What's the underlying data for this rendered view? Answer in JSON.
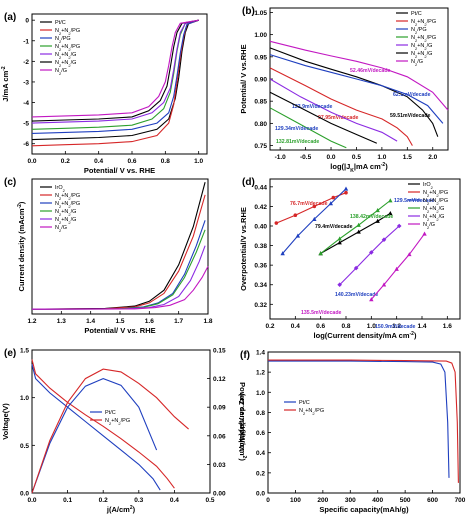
{
  "chart_data": [
    {
      "panel_label": "(a)",
      "type": "line",
      "xlabel": "Potential/ V vs. RHE",
      "ylabel": "J/mA cm",
      "ylabel_sup": "-2",
      "xlim": [
        0.0,
        1.05
      ],
      "ylim": [
        -6.5,
        0.3
      ],
      "xticks": [
        "0.0",
        "0.2",
        "0.4",
        "0.6",
        "0.8",
        "1.0"
      ],
      "yticks": [
        "-6",
        "-5",
        "-4",
        "-3",
        "-2",
        "-1",
        "0"
      ],
      "legend_position": "top-left",
      "series": [
        {
          "name": "Pt/C",
          "color": "#000000",
          "x": [
            0.0,
            0.2,
            0.4,
            0.6,
            0.75,
            0.82,
            0.86,
            0.88,
            0.9,
            0.92,
            0.94,
            1.0
          ],
          "y": [
            -5.8,
            -5.75,
            -5.7,
            -5.6,
            -5.3,
            -4.8,
            -3.8,
            -2.8,
            -1.5,
            -0.6,
            -0.15,
            0.0
          ]
        },
        {
          "name": "N2+N2/PG",
          "color": "#d62728",
          "x": [
            0.0,
            0.2,
            0.4,
            0.6,
            0.75,
            0.82,
            0.85,
            0.87,
            0.89,
            0.91,
            0.93,
            1.0
          ],
          "y": [
            -6.1,
            -6.05,
            -6.0,
            -5.9,
            -5.6,
            -5.0,
            -4.1,
            -3.0,
            -1.8,
            -0.8,
            -0.2,
            0.0
          ]
        },
        {
          "name": "N2/PG",
          "color": "#1f3fbf",
          "x": [
            0.0,
            0.2,
            0.4,
            0.6,
            0.75,
            0.82,
            0.85,
            0.87,
            0.89,
            0.91,
            0.93,
            1.0
          ],
          "y": [
            -5.5,
            -5.45,
            -5.4,
            -5.3,
            -5.0,
            -4.5,
            -3.7,
            -2.7,
            -1.6,
            -0.7,
            -0.2,
            0.0
          ]
        },
        {
          "name": "N2+N2/PG",
          "color": "#2ca02c",
          "x": [
            0.0,
            0.2,
            0.4,
            0.6,
            0.72,
            0.79,
            0.83,
            0.85,
            0.87,
            0.89,
            0.92,
            1.0
          ],
          "y": [
            -5.3,
            -5.25,
            -5.2,
            -5.1,
            -4.8,
            -4.3,
            -3.5,
            -2.6,
            -1.5,
            -0.7,
            -0.15,
            0.0
          ]
        },
        {
          "name": "N2+N2/G",
          "color": "#8b2be2",
          "x": [
            0.0,
            0.2,
            0.4,
            0.6,
            0.72,
            0.79,
            0.83,
            0.85,
            0.87,
            0.89,
            0.92,
            1.0
          ],
          "y": [
            -5.0,
            -4.95,
            -4.9,
            -4.8,
            -4.5,
            -4.0,
            -3.3,
            -2.4,
            -1.4,
            -0.6,
            -0.15,
            0.0
          ]
        },
        {
          "name": "N2+N2/G",
          "color": "#000000",
          "x": [
            0.0,
            0.2,
            0.4,
            0.6,
            0.7,
            0.77,
            0.81,
            0.83,
            0.85,
            0.87,
            0.9,
            1.0
          ],
          "y": [
            -4.9,
            -4.85,
            -4.8,
            -4.7,
            -4.4,
            -3.9,
            -3.2,
            -2.3,
            -1.3,
            -0.6,
            -0.15,
            0.0
          ]
        },
        {
          "name": "N2/G",
          "color": "#c218c2",
          "x": [
            0.0,
            0.2,
            0.4,
            0.6,
            0.7,
            0.76,
            0.8,
            0.82,
            0.84,
            0.86,
            0.89,
            1.0
          ],
          "y": [
            -4.7,
            -4.65,
            -4.6,
            -4.5,
            -4.2,
            -3.7,
            -3.0,
            -2.2,
            -1.3,
            -0.6,
            -0.15,
            0.0
          ]
        }
      ]
    },
    {
      "panel_label": "(b)",
      "type": "line",
      "xlabel": "log(|J",
      "xlabel_sub": "K",
      "xlabel_tail": "|mA cm",
      "xlabel_sup": "-2",
      "xlabel_end": ")",
      "ylabel": "Potential/ V vs.RHE",
      "xlim": [
        -1.2,
        2.3
      ],
      "ylim": [
        0.74,
        1.06
      ],
      "xticks": [
        "-1.0",
        "-0.5",
        "0.0",
        "0.5",
        "1.0",
        "1.5",
        "2.0"
      ],
      "yticks": [
        "0.75",
        "0.80",
        "0.85",
        "0.90",
        "0.95",
        "1.00",
        "1.05"
      ],
      "legend_position": "top-right",
      "series": [
        {
          "name": "Pt/C",
          "color": "#000000",
          "x": [
            -1.2,
            -0.5,
            0.0,
            0.5,
            1.0,
            1.5,
            1.8,
            2.0,
            2.1
          ],
          "y": [
            0.97,
            0.94,
            0.922,
            0.905,
            0.885,
            0.86,
            0.83,
            0.8,
            0.77
          ],
          "annotation": "59.51mV/decade",
          "annotation_color": "#000000"
        },
        {
          "name": "N2+N2/PG",
          "color": "#d62728",
          "x": [
            -1.2,
            -0.5,
            0.0,
            0.5,
            1.0,
            1.3,
            1.5,
            1.6
          ],
          "y": [
            0.925,
            0.885,
            0.855,
            0.83,
            0.81,
            0.79,
            0.77,
            0.75
          ],
          "annotation": "97.95mV/decade",
          "annotation_color": "#d62728"
        },
        {
          "name": "N2/PG",
          "color": "#1f3fbf",
          "x": [
            -1.2,
            -0.5,
            0.0,
            0.5,
            1.0,
            1.5,
            1.9,
            2.2
          ],
          "y": [
            0.955,
            0.93,
            0.915,
            0.9,
            0.885,
            0.865,
            0.84,
            0.8
          ],
          "annotation": "62.1mV/decade",
          "annotation_color": "#1f3fbf"
        },
        {
          "name": "N2+N2/PG",
          "color": "#2ca02c",
          "x": [
            -1.2,
            -0.8,
            -0.4,
            0.0,
            0.3
          ],
          "y": [
            0.835,
            0.81,
            0.785,
            0.76,
            0.745
          ],
          "annotation": "132.81mV/decade",
          "annotation_color": "#2ca02c"
        },
        {
          "name": "N2+N2/G",
          "color": "#8b2be2",
          "x": [
            -1.2,
            -0.6,
            0.0,
            0.5,
            1.0,
            1.3
          ],
          "y": [
            0.9,
            0.86,
            0.825,
            0.8,
            0.78,
            0.76
          ],
          "annotation": "123.9mV/decade",
          "annotation_color": "#1f3fbf"
        },
        {
          "name": "N2+N2/G",
          "color": "#000000",
          "x": [
            -1.2,
            -0.6,
            0.0,
            0.5,
            0.9
          ],
          "y": [
            0.87,
            0.835,
            0.8,
            0.775,
            0.755
          ],
          "annotation": "129.34mV/decade",
          "annotation_color": "#1f3fbf"
        },
        {
          "name": "N2/G",
          "color": "#c218c2",
          "x": [
            -1.2,
            -0.5,
            0.0,
            0.5,
            1.0,
            1.5,
            2.0,
            2.3
          ],
          "y": [
            0.985,
            0.965,
            0.952,
            0.94,
            0.925,
            0.905,
            0.87,
            0.83
          ],
          "annotation": "52.46mV/decade",
          "annotation_color": "#c218c2"
        }
      ]
    },
    {
      "panel_label": "(c)",
      "type": "line",
      "xlabel": "Potential/ V vs. RHE",
      "ylabel": "Current density (mAcm",
      "ylabel_sup": "-2",
      "ylabel_end": ")",
      "xlim": [
        1.2,
        1.8
      ],
      "ylim": [
        -3,
        82
      ],
      "xticks": [
        "1.2",
        "1.3",
        "1.4",
        "1.5",
        "1.6",
        "1.7",
        "1.8"
      ],
      "yticks": [],
      "legend_position": "top-left",
      "series": [
        {
          "name": "IrO2",
          "color": "#000000",
          "x": [
            1.2,
            1.45,
            1.55,
            1.6,
            1.65,
            1.7,
            1.75,
            1.79
          ],
          "y": [
            0,
            0.5,
            2,
            5,
            12,
            28,
            52,
            80
          ]
        },
        {
          "name": "N2+N2/PG",
          "color": "#d62728",
          "x": [
            1.2,
            1.45,
            1.55,
            1.6,
            1.65,
            1.7,
            1.75,
            1.79
          ],
          "y": [
            0,
            0.3,
            1.5,
            4,
            10,
            24,
            46,
            72
          ]
        },
        {
          "name": "N2+N2/PG",
          "color": "#1f3fbf",
          "x": [
            1.2,
            1.5,
            1.58,
            1.63,
            1.68,
            1.72,
            1.76,
            1.79
          ],
          "y": [
            0,
            0.3,
            1.5,
            4,
            10,
            22,
            40,
            56
          ]
        },
        {
          "name": "N2+N2/G",
          "color": "#2ca02c",
          "x": [
            1.2,
            1.5,
            1.58,
            1.63,
            1.68,
            1.72,
            1.76,
            1.79
          ],
          "y": [
            0,
            0.2,
            1.2,
            3.5,
            9,
            20,
            36,
            50
          ]
        },
        {
          "name": "N2+N2/G",
          "color": "#8b2be2",
          "x": [
            1.2,
            1.52,
            1.6,
            1.65,
            1.7,
            1.74,
            1.77,
            1.79
          ],
          "y": [
            0,
            0.2,
            1.0,
            3.0,
            8,
            18,
            30,
            40
          ]
        },
        {
          "name": "N2/G",
          "color": "#c218c2",
          "x": [
            1.2,
            1.55,
            1.62,
            1.67,
            1.72,
            1.75,
            1.78,
            1.8
          ],
          "y": [
            0,
            0.2,
            1.0,
            2.5,
            6,
            12,
            20,
            27
          ]
        }
      ]
    },
    {
      "panel_label": "(d)",
      "type": "scatter",
      "xlabel": "log(Current density/mA cm",
      "xlabel_sup": "-2",
      "xlabel_end": ")",
      "ylabel": "Overpotential/V vs.RHE",
      "xlim": [
        0.2,
        1.7
      ],
      "ylim": [
        0.305,
        0.448
      ],
      "xticks": [
        "0.2",
        "0.4",
        "0.6",
        "0.8",
        "1.0",
        "1.2",
        "1.4",
        "1.6"
      ],
      "yticks": [
        "0.32",
        "0.34",
        "0.36",
        "0.38",
        "0.40",
        "0.42",
        "0.44"
      ],
      "legend_position": "top-right",
      "series": [
        {
          "name": "IrO2",
          "color": "#000000",
          "marker": "triangle",
          "x": [
            0.6,
            0.75,
            0.9,
            1.05,
            1.15
          ],
          "y": [
            0.372,
            0.383,
            0.394,
            0.405,
            0.413
          ],
          "annotation": "79.4mV/decade",
          "annotation_color": "#000000"
        },
        {
          "name": "N2+N2/PG",
          "color": "#d62728",
          "marker": "circle",
          "x": [
            0.25,
            0.4,
            0.55,
            0.7,
            0.8
          ],
          "y": [
            0.403,
            0.411,
            0.42,
            0.429,
            0.434
          ],
          "annotation": "76.7mV/decade",
          "annotation_color": "#d62728"
        },
        {
          "name": "N2+N2/PG",
          "color": "#1f3fbf",
          "marker": "triangle",
          "x": [
            0.3,
            0.42,
            0.55,
            0.68,
            0.8
          ],
          "y": [
            0.372,
            0.39,
            0.407,
            0.423,
            0.438
          ],
          "annotation": "129.5mV/decade",
          "annotation_color": "#1f3fbf"
        },
        {
          "name": "N2+N2/G",
          "color": "#2ca02c",
          "marker": "triangle",
          "x": [
            0.6,
            0.75,
            0.9,
            1.05,
            1.15
          ],
          "y": [
            0.372,
            0.387,
            0.401,
            0.416,
            0.426
          ],
          "annotation": "138.42mV/decade",
          "annotation_color": "#2ca02c"
        },
        {
          "name": "N2+N2/G",
          "color": "#8b2be2",
          "marker": "diamond",
          "x": [
            0.75,
            0.88,
            1.0,
            1.1,
            1.22
          ],
          "y": [
            0.34,
            0.357,
            0.373,
            0.386,
            0.4
          ],
          "annotation": "140.23mV/decade",
          "annotation_color": "#1f3fbf"
        },
        {
          "name": "N2/G",
          "color": "#c218c2",
          "marker": "triangle",
          "x": [
            1.0,
            1.1,
            1.2,
            1.3,
            1.42
          ],
          "y": [
            0.325,
            0.34,
            0.356,
            0.371,
            0.392
          ],
          "annotation": "150.9mV/decade",
          "annotation_color": "#1f3fbf"
        }
      ],
      "extra_annotations": [
        {
          "text": "135.5mV/decade",
          "color": "#c218c2"
        }
      ]
    },
    {
      "panel_label": "(e)",
      "type": "line",
      "xlabel": "j(A/cm",
      "xlabel_sup": "2",
      "xlabel_end": ")",
      "ylabel": "Voltage(V)",
      "ylabel_right": "Power density(W/cm",
      "ylabel_right_sup": "2",
      "ylabel_right_end": ")",
      "xlim": [
        0.0,
        0.5
      ],
      "ylim": [
        0.0,
        1.5
      ],
      "ylim_right": [
        0.0,
        0.15
      ],
      "xticks": [
        "0.0",
        "0.1",
        "0.2",
        "0.3",
        "0.4",
        "0.5"
      ],
      "yticks": [
        "0.0",
        "0.5",
        "1.0",
        "1.5"
      ],
      "yticks_right": [
        "0.00",
        "0.03",
        "0.06",
        "0.09",
        "0.12",
        "0.15"
      ],
      "legend_position": "center",
      "series": [
        {
          "name": "Pt/C",
          "color": "#1f3fbf",
          "axis": "left",
          "x": [
            0.0,
            0.01,
            0.05,
            0.1,
            0.15,
            0.2,
            0.25,
            0.3,
            0.34,
            0.36
          ],
          "y": [
            1.35,
            1.2,
            1.05,
            0.9,
            0.75,
            0.6,
            0.45,
            0.3,
            0.15,
            0.03
          ]
        },
        {
          "name": "N2+N2/PG",
          "color": "#d62728",
          "axis": "left",
          "x": [
            0.0,
            0.01,
            0.05,
            0.1,
            0.15,
            0.2,
            0.25,
            0.3,
            0.35,
            0.38,
            0.4
          ],
          "y": [
            1.4,
            1.25,
            1.1,
            0.95,
            0.82,
            0.7,
            0.57,
            0.43,
            0.28,
            0.15,
            0.05
          ]
        },
        {
          "name": "Pt/C",
          "color": "#1f3fbf",
          "axis": "right",
          "x": [
            0.0,
            0.05,
            0.1,
            0.15,
            0.2,
            0.25,
            0.3,
            0.35
          ],
          "y": [
            0.0,
            0.052,
            0.09,
            0.112,
            0.12,
            0.113,
            0.09,
            0.045
          ]
        },
        {
          "name": "N2+N2/PG",
          "color": "#d62728",
          "axis": "right",
          "x": [
            0.0,
            0.05,
            0.1,
            0.15,
            0.2,
            0.25,
            0.3,
            0.35,
            0.4,
            0.44
          ],
          "y": [
            0.0,
            0.055,
            0.095,
            0.12,
            0.13,
            0.127,
            0.115,
            0.1,
            0.08,
            0.067
          ]
        }
      ]
    },
    {
      "panel_label": "(f)",
      "type": "line",
      "xlabel": "Specific capacity(mAh/g)",
      "ylabel": "Voltage(V vs.Zn)",
      "xlim": [
        0,
        700
      ],
      "ylim": [
        0.0,
        1.4
      ],
      "xticks": [
        "0",
        "100",
        "200",
        "300",
        "400",
        "500",
        "600",
        "700"
      ],
      "yticks": [
        "0.0",
        "0.2",
        "0.4",
        "0.6",
        "0.8",
        "1.0",
        "1.2",
        "1.4"
      ],
      "legend_position": "center-left",
      "series": [
        {
          "name": "Pt/C",
          "color": "#1f3fbf",
          "x": [
            0,
            100,
            300,
            500,
            600,
            630,
            645,
            655,
            660
          ],
          "y": [
            1.31,
            1.31,
            1.31,
            1.305,
            1.3,
            1.28,
            1.2,
            0.7,
            0.15
          ]
        },
        {
          "name": "N2+N2/PG",
          "color": "#d62728",
          "x": [
            0,
            100,
            300,
            500,
            650,
            670,
            682,
            690,
            694
          ],
          "y": [
            1.32,
            1.32,
            1.32,
            1.315,
            1.31,
            1.29,
            1.2,
            0.7,
            0.1
          ]
        }
      ]
    }
  ]
}
